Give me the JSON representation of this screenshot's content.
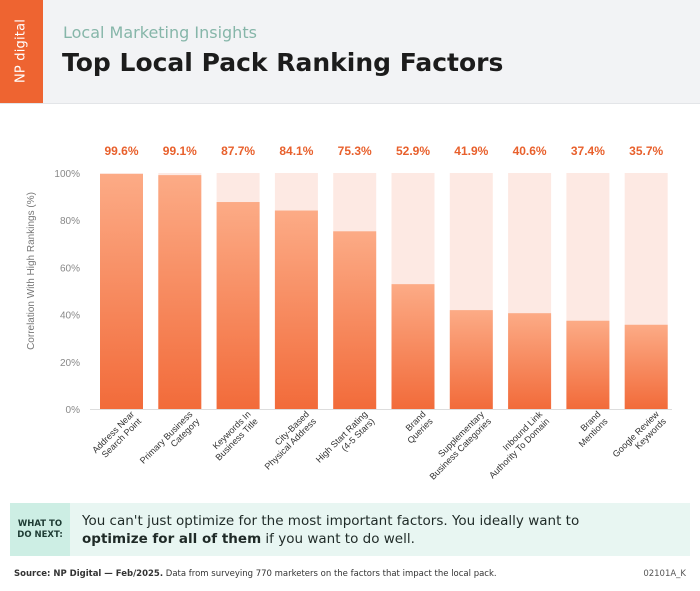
{
  "header": {
    "logo_text": "NP digital",
    "subtitle": "Local Marketing Insights",
    "title": "Top Local Pack Ranking Factors"
  },
  "colors": {
    "accent": "#ee6431",
    "bar_top": "#fcab86",
    "bar_bottom": "#f26b3a",
    "bar_background": "#fde9e3",
    "label_color": "#e8602c",
    "subtitle_color": "#86b6a9"
  },
  "chart_data": {
    "type": "bar",
    "title": "",
    "xlabel": "",
    "ylabel": "Correlation With High Rankings (%)",
    "ylim": [
      0,
      100
    ],
    "yticks": [
      "0%",
      "20%",
      "40%",
      "60%",
      "80%",
      "100%"
    ],
    "ytick_values": [
      0,
      20,
      40,
      60,
      80,
      100
    ],
    "grid": false,
    "categories": [
      [
        "Address Near",
        "Search Point"
      ],
      [
        "Primary Business",
        "Category"
      ],
      [
        "Keywords In",
        "Business Title"
      ],
      [
        "City-Based",
        "Physical Address"
      ],
      [
        "High Start Rating",
        "(4-5 Stars)"
      ],
      [
        "Brand",
        "Queries"
      ],
      [
        "Supplementary",
        "Business Categories"
      ],
      [
        "Inbound Link",
        "Authority To Domain"
      ],
      [
        "Brand",
        "Mentions"
      ],
      [
        "Google Review",
        "Keywords"
      ]
    ],
    "values": [
      99.6,
      99.1,
      87.7,
      84.1,
      75.3,
      52.9,
      41.9,
      40.6,
      37.4,
      35.7
    ],
    "value_labels": [
      "99.6%",
      "99.1%",
      "87.7%",
      "84.1%",
      "75.3%",
      "52.9%",
      "41.9%",
      "40.6%",
      "37.4%",
      "35.7%"
    ]
  },
  "callout": {
    "badge_line1": "WHAT TO",
    "badge_line2": "DO NEXT:",
    "text_before": "You can't just optimize for the most important factors. You ideally want to ",
    "text_bold": "optimize for all of them",
    "text_after": " if you want to do well."
  },
  "footer": {
    "source_bold": "Source: NP Digital — Feb/2025.",
    "source_text": " Data from surveying 770 marketers on the factors that impact the local pack.",
    "code": "02101A_K"
  }
}
